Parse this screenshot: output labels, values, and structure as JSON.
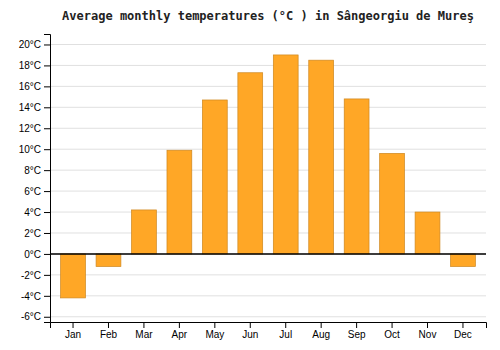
{
  "chart_data": {
    "type": "bar",
    "title": "Average monthly temperatures (°C ) in Sângeorgiu de Mureş",
    "categories": [
      "Jan",
      "Feb",
      "Mar",
      "Apr",
      "May",
      "Jun",
      "Jul",
      "Aug",
      "Sep",
      "Oct",
      "Nov",
      "Dec"
    ],
    "values": [
      -4.2,
      -1.2,
      4.2,
      9.9,
      14.7,
      17.3,
      19.0,
      18.5,
      14.8,
      9.6,
      4.0,
      -1.2
    ],
    "color": "#FFA726",
    "ylim": [
      -6.5,
      21
    ],
    "yticks": [
      {
        "value": -6,
        "label": "-6°C"
      },
      {
        "value": -4,
        "label": "-4°C"
      },
      {
        "value": -2,
        "label": "-2°C"
      },
      {
        "value": 0,
        "label": "0°C"
      },
      {
        "value": 2,
        "label": "2°C"
      },
      {
        "value": 4,
        "label": "4°C"
      },
      {
        "value": 6,
        "label": "6°C"
      },
      {
        "value": 8,
        "label": "8°C"
      },
      {
        "value": 10,
        "label": "10°C"
      },
      {
        "value": 12,
        "label": "12°C"
      },
      {
        "value": 14,
        "label": "14°C"
      },
      {
        "value": 16,
        "label": "16°C"
      },
      {
        "value": 18,
        "label": "18°C"
      },
      {
        "value": 20,
        "label": "20°C"
      }
    ],
    "grid": true
  }
}
